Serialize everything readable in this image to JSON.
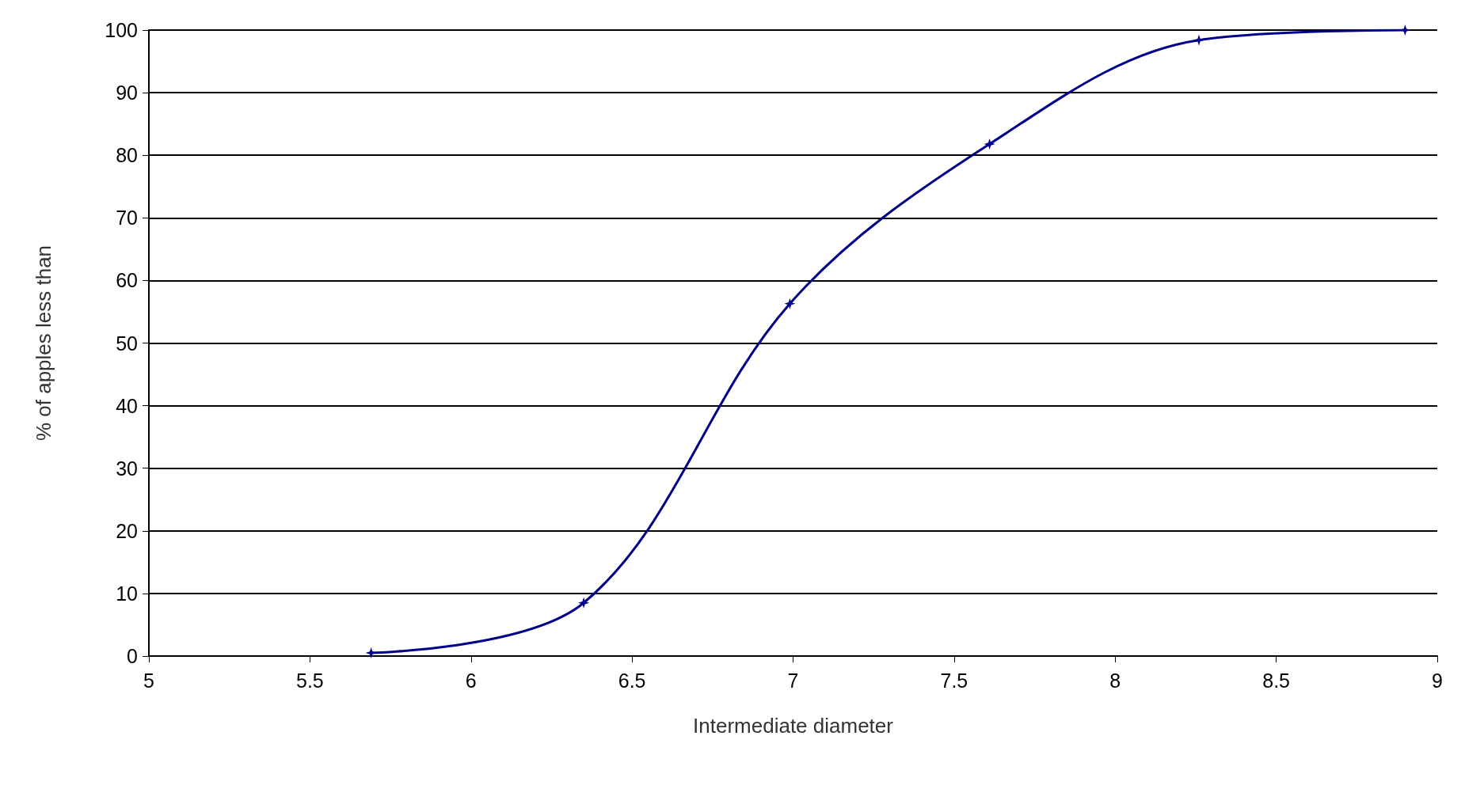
{
  "chart_data": {
    "type": "line",
    "xlabel": "Intermediate diameter",
    "ylabel": "% of apples less than",
    "series": [
      {
        "color": "#00008b",
        "x": [
          5.69,
          6.35,
          6.99,
          7.61,
          8.26,
          8.9
        ],
        "values": [
          0.5,
          8.5,
          56.3,
          81.8,
          98.4,
          100
        ]
      }
    ],
    "xlim": [
      5,
      9
    ],
    "xticks": [
      5,
      5.5,
      6,
      6.5,
      7,
      7.5,
      8,
      8.5,
      9
    ],
    "ylim": [
      0,
      100
    ],
    "yticks": [
      0,
      10,
      20,
      30,
      40,
      50,
      60,
      70,
      80,
      90,
      100
    ],
    "grid": "y",
    "marker": "star",
    "line_style": "solid"
  }
}
